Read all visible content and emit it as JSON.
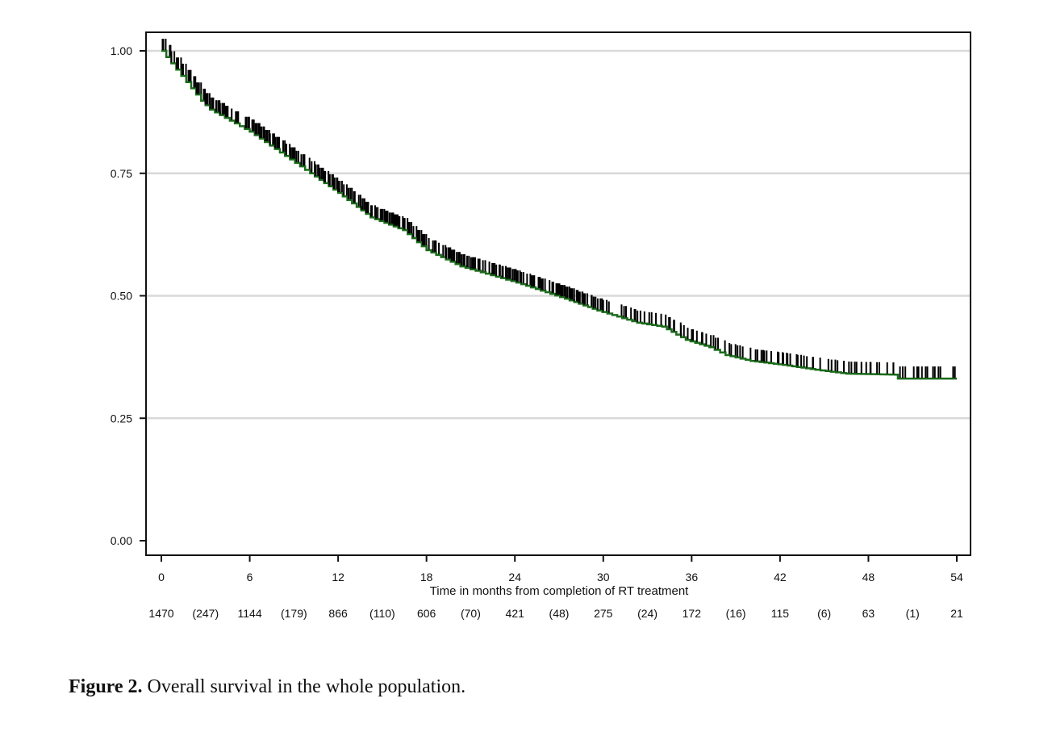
{
  "chart_data": {
    "type": "line",
    "subtype": "kaplan-meier",
    "title": "",
    "xlabel": "Time in months from completion of RT treatment",
    "ylabel": "",
    "xlim": [
      0,
      54
    ],
    "ylim": [
      0,
      1
    ],
    "x_ticks": [
      "0",
      "6",
      "12",
      "18",
      "24",
      "30",
      "36",
      "42",
      "48",
      "54"
    ],
    "y_ticks": [
      "0.00",
      "0.25",
      "0.50",
      "0.75",
      "1.00"
    ],
    "grid": "horizontal",
    "censor_marks": true,
    "colors": {
      "curve": "#1a6b1a",
      "censor": "#000000",
      "grid": "#d9d9d9"
    },
    "series": [
      {
        "x": [
          0,
          2.7,
          3.3,
          6,
          10.1,
          12,
          14.2,
          16.4,
          18,
          20.3,
          24.1,
          27.4,
          29.6,
          32.3,
          34,
          35.6,
          37.2,
          38.3,
          40,
          42.2,
          44.4,
          46.5,
          49.8,
          50,
          54
        ],
        "y": [
          1.0,
          0.898,
          0.88,
          0.835,
          0.75,
          0.71,
          0.66,
          0.634,
          0.593,
          0.56,
          0.527,
          0.494,
          0.47,
          0.445,
          0.437,
          0.41,
          0.395,
          0.379,
          0.367,
          0.359,
          0.349,
          0.341,
          0.339,
          0.331,
          0.331
        ]
      }
    ],
    "risk_table": [
      {
        "t": "0",
        "n": "1470"
      },
      {
        "t": "3",
        "n": "(247)"
      },
      {
        "t": "6",
        "n": "1144"
      },
      {
        "t": "9",
        "n": "(179)"
      },
      {
        "t": "12",
        "n": "866"
      },
      {
        "t": "15",
        "n": "(110)"
      },
      {
        "t": "18",
        "n": "606"
      },
      {
        "t": "21",
        "n": "(70)"
      },
      {
        "t": "24",
        "n": "421"
      },
      {
        "t": "27",
        "n": "(48)"
      },
      {
        "t": "30",
        "n": "275"
      },
      {
        "t": "33",
        "n": "(24)"
      },
      {
        "t": "36",
        "n": "172"
      },
      {
        "t": "39",
        "n": "(16)"
      },
      {
        "t": "42",
        "n": "115"
      },
      {
        "t": "45",
        "n": "(6)"
      },
      {
        "t": "48",
        "n": "63"
      },
      {
        "t": "51",
        "n": "(1)"
      },
      {
        "t": "54",
        "n": "21"
      }
    ]
  },
  "caption": {
    "label": "Figure 2.",
    "text": " Overall survival in the whole population."
  }
}
